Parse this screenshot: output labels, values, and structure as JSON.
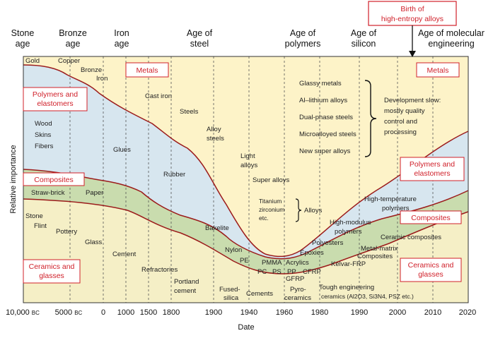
{
  "eras": [
    {
      "id": "stone",
      "lines": [
        "Stone",
        "age"
      ],
      "x": 32
    },
    {
      "id": "bronze",
      "lines": [
        "Bronze",
        "age"
      ],
      "x": 103
    },
    {
      "id": "iron",
      "lines": [
        "Iron",
        "age"
      ],
      "x": 172
    },
    {
      "id": "steel",
      "lines": [
        "Age of",
        "steel"
      ],
      "x": 282
    },
    {
      "id": "polymers",
      "lines": [
        "Age of",
        "polymers"
      ],
      "x": 428
    },
    {
      "id": "silicon",
      "lines": [
        "Age of",
        "silicon"
      ],
      "x": 514
    },
    {
      "id": "molecular",
      "lines": [
        "Age of molecular",
        "engineering"
      ],
      "x": 638
    }
  ],
  "callout": {
    "lines": [
      "Birth of",
      "high-entropy alloys"
    ]
  },
  "xaxis": {
    "title": "Date",
    "ticks": [
      {
        "label": "10,000 BC",
        "html": "10,000 <tspan font-size='8'>BC</tspan>"
      },
      {
        "label": "5000 BC"
      },
      {
        "label": "0"
      },
      {
        "label": "1000"
      },
      {
        "label": "1500"
      },
      {
        "label": "1800"
      },
      {
        "label": "1900"
      },
      {
        "label": "1940"
      },
      {
        "label": "1960"
      },
      {
        "label": "1980"
      },
      {
        "label": "1990"
      },
      {
        "label": "2000"
      },
      {
        "label": "2010"
      },
      {
        "label": "2020"
      }
    ]
  },
  "yaxis": {
    "title": "Relative importance"
  },
  "boxes": {
    "metals_left": "Metals",
    "metals_right": "Metals",
    "polymers_left": [
      "Polymers and",
      "elastomers"
    ],
    "polymers_right": [
      "Polymers and",
      "elastomers"
    ],
    "composites_left": "Composites",
    "composites_right": "Composites",
    "ceramics_left": [
      "Ceramics and",
      "glasses"
    ],
    "ceramics_right": [
      "Ceramics and",
      "glasses"
    ]
  },
  "material_labels": [
    "Gold",
    "Copper",
    "Bronze",
    "Iron",
    "Cast iron",
    "Steels",
    "Alloy",
    "steels",
    "Light",
    "alloys",
    "Super alloys",
    "Titanium",
    "zirconium",
    "etc.",
    "Alloys",
    "Wood",
    "Skins",
    "Fibers",
    "Glues",
    "Rubber",
    "Bakelite",
    "Nylon",
    "PE",
    "PMMA",
    "PC",
    "PS",
    "PP",
    "Acrylics",
    "Epoxies",
    "Polyesters",
    "High-modulus",
    "polymers",
    "High-temperature",
    "polymers",
    "Straw-brick",
    "Paper",
    "GFRP",
    "CFRP",
    "Kelvar-FRP",
    "Metal-matrix",
    "Composites",
    "Ceramic composites",
    "Stone",
    "Flint",
    "Pottery",
    "Glass",
    "Cement",
    "Refractories",
    "Portland",
    "cement",
    "Fused-",
    "silica",
    "Cements",
    "Pyro-",
    "ceramics",
    "Tough engineering",
    "ceramics (Al2O3, Si3N4, PSZ etc.)"
  ],
  "metals_list": [
    "Glassy metals",
    "Al–lithium alloys",
    "Dual-phase steels",
    "Microalloyed steels",
    "New super alloys"
  ],
  "development_note": [
    "Development slow:",
    "mostly quality",
    "control and",
    "processing"
  ],
  "colors": {
    "metals": "#fdf3c8",
    "polymers": "#d7e6ef",
    "composites": "#c9dcae",
    "ceramics": "#f5efc6",
    "curve": "#9b1b1b",
    "box_border": "#d0202a",
    "box_text": "#d0202a"
  }
}
